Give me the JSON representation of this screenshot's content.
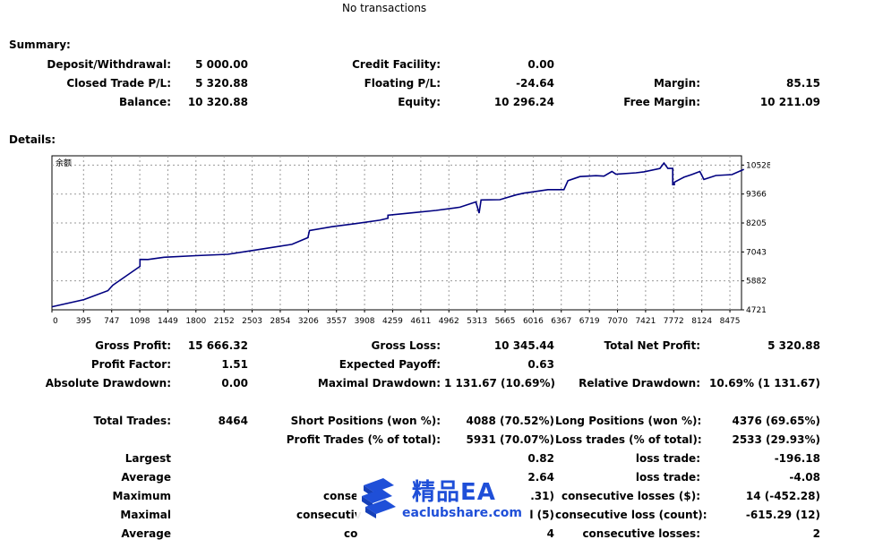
{
  "header": {
    "no_transactions": "No transactions"
  },
  "summary": {
    "title": "Summary:",
    "deposit_label": "Deposit/Withdrawal:",
    "deposit_value": "5 000.00",
    "credit_label": "Credit Facility:",
    "credit_value": "0.00",
    "closed_label": "Closed Trade P/L:",
    "closed_value": "5 320.88",
    "floating_label": "Floating P/L:",
    "floating_value": "-24.64",
    "margin_label": "Margin:",
    "margin_value": "85.15",
    "balance_label": "Balance:",
    "balance_value": "10 320.88",
    "equity_label": "Equity:",
    "equity_value": "10 296.24",
    "free_margin_label": "Free Margin:",
    "free_margin_value": "10 211.09"
  },
  "details": {
    "title": "Details:"
  },
  "chart_data": {
    "type": "line",
    "legend": "余额",
    "x_ticks": [
      "0",
      "395",
      "747",
      "1098",
      "1449",
      "1800",
      "2152",
      "2503",
      "2854",
      "3206",
      "3557",
      "3908",
      "4259",
      "4611",
      "4962",
      "5313",
      "5665",
      "6016",
      "6367",
      "6719",
      "7070",
      "7421",
      "7772",
      "8124",
      "8475"
    ],
    "y_ticks": [
      "10528",
      "9366",
      "8205",
      "7043",
      "5882",
      "4721"
    ],
    "xlim": [
      0,
      8620
    ],
    "ylim": [
      4721,
      10900
    ],
    "grid": true,
    "line_color": "#000080",
    "x": [
      0,
      400,
      700,
      700,
      760,
      1100,
      1100,
      1200,
      1400,
      1800,
      2200,
      2600,
      3000,
      3200,
      3200,
      3220,
      3220,
      3500,
      3800,
      4100,
      4200,
      4200,
      4500,
      4800,
      5100,
      5300,
      5300,
      5340,
      5340,
      5365,
      5365,
      5600,
      5800,
      5800,
      5900,
      6000,
      6200,
      6400,
      6400,
      6450,
      6450,
      6600,
      6700,
      6800,
      6900,
      7000,
      7000,
      7050,
      7050,
      7300,
      7400,
      7600,
      7600,
      7650,
      7650,
      7700,
      7760,
      7760,
      7780,
      7780,
      7900,
      8000,
      8100,
      8100,
      8150,
      8150,
      8300,
      8500,
      8650
    ],
    "y": [
      4842,
      5131,
      5488,
      5488,
      5704,
      6465,
      6744,
      6741,
      6830,
      6894,
      6947,
      7148,
      7348,
      7616,
      7616,
      7900,
      7900,
      8055,
      8180,
      8317,
      8392,
      8518,
      8613,
      8707,
      8839,
      9050,
      9050,
      8600,
      8600,
      9129,
      9129,
      9140,
      9330,
      9330,
      9403,
      9450,
      9542,
      9541,
      9541,
      9900,
      9900,
      10065,
      10086,
      10102,
      10085,
      10270,
      10270,
      10165,
      10165,
      10217,
      10258,
      10395,
      10395,
      10610,
      10610,
      10395,
      10395,
      9745,
      9745,
      9840,
      10042,
      10148,
      10270,
      10270,
      9953,
      9953,
      10109,
      10147,
      10359
    ]
  },
  "stats": {
    "gross_profit_label": "Gross Profit:",
    "gross_profit_value": "15 666.32",
    "gross_loss_label": "Gross Loss:",
    "gross_loss_value": "10 345.44",
    "total_net_label": "Total Net Profit:",
    "total_net_value": "5 320.88",
    "profit_factor_label": "Profit Factor:",
    "profit_factor_value": "1.51",
    "expected_payoff_label": "Expected Payoff:",
    "expected_payoff_value": "0.63",
    "abs_dd_label": "Absolute Drawdown:",
    "abs_dd_value": "0.00",
    "max_dd_label": "Maximal Drawdown:",
    "max_dd_value": "1 131.67 (10.69%)",
    "rel_dd_label": "Relative Drawdown:",
    "rel_dd_value": "10.69% (1 131.67)",
    "total_trades_label": "Total Trades:",
    "total_trades_value": "8464",
    "short_label": "Short Positions (won %):",
    "short_value": "4088 (70.52%)",
    "long_label": "Long Positions (won %):",
    "long_value": "4376 (69.65%)",
    "profit_trades_label": "Profit Trades (% of total):",
    "profit_trades_value": "5931 (70.07%)",
    "loss_trades_label": "Loss trades (% of total):",
    "loss_trades_value": "2533 (29.93%)",
    "largest_label": "Largest",
    "largest_profit_value": "0.82",
    "largest_loss_label": "loss trade:",
    "largest_loss_value": "-196.18",
    "average_label": "Average",
    "average_profit_value": "2.64",
    "average_loss_label": "loss trade:",
    "average_loss_value": "-4.08",
    "maximum_label": "Maximum",
    "maximum_mid_label": "conse",
    "maximum_mid_value": ".31)",
    "max_consec_losses_label": "consecutive losses ($):",
    "max_consec_losses_value": "14 (-452.28)",
    "maximal_label": "Maximal",
    "maximal_mid_label": "consecutiv",
    "maximal_mid_value": "l (5)",
    "maximal_loss_label": "consecutive loss (count):",
    "maximal_loss_value": "-615.29 (12)",
    "average2_label": "Average",
    "average2_mid_label": "co",
    "average2_mid_value": "4",
    "average2_loss_label": "consecutive losses:",
    "average2_loss_value": "2"
  },
  "watermark": {
    "cn_text": "精品EA",
    "site": "eaclubshare.com",
    "icon": "books-stack-icon",
    "color": "#1f4fd8"
  }
}
